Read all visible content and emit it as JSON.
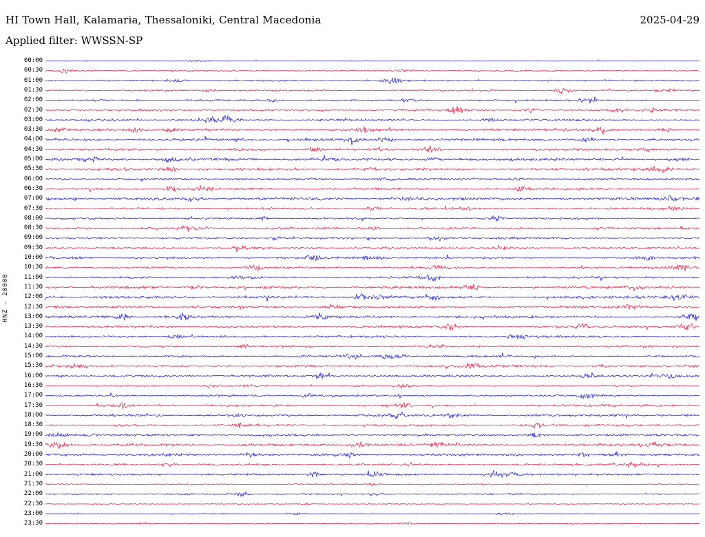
{
  "chart_data": {
    "type": "line",
    "subtype": "seismogram-helicorder",
    "station": "HI Town Hall, Kalamaria, Thessaloniki, Central Macedonia",
    "date": "2025-04-29",
    "filter_label": "Applied filter: WWSSN-SP",
    "channel_scale_label": "HNZ - 20000",
    "row_interval_minutes": 30,
    "legend_position": "none",
    "grid": false,
    "palette": {
      "blue": "#1212cc",
      "red": "#e4103c"
    },
    "rows": [
      {
        "time": "00:00",
        "color": "blue",
        "amp": 0.4,
        "bursts": [
          [
            0.23,
            1.2
          ]
        ]
      },
      {
        "time": "00:30",
        "color": "red",
        "amp": 0.8,
        "bursts": [
          [
            0.03,
            2.2
          ],
          [
            0.55,
            1.4
          ]
        ]
      },
      {
        "time": "01:00",
        "color": "blue",
        "amp": 0.9,
        "bursts": [
          [
            0.53,
            4.0
          ],
          [
            0.2,
            1.5
          ]
        ]
      },
      {
        "time": "01:30",
        "color": "red",
        "amp": 0.9,
        "bursts": [
          [
            0.79,
            4.5
          ],
          [
            0.25,
            2.0
          ],
          [
            0.95,
            2.4
          ]
        ]
      },
      {
        "time": "02:00",
        "color": "blue",
        "amp": 1.0,
        "bursts": [
          [
            0.35,
            2.0
          ],
          [
            0.56,
            2.0
          ],
          [
            0.83,
            2.4
          ]
        ]
      },
      {
        "time": "02:30",
        "color": "red",
        "amp": 1.1,
        "bursts": [
          [
            0.63,
            3.5
          ],
          [
            0.74,
            3.5
          ],
          [
            0.87,
            2.5
          ],
          [
            0.93,
            2.5
          ]
        ]
      },
      {
        "time": "03:00",
        "color": "blue",
        "amp": 1.2,
        "bursts": [
          [
            0.25,
            4.5
          ],
          [
            0.28,
            5.0
          ],
          [
            0.68,
            2.0
          ]
        ]
      },
      {
        "time": "03:30",
        "color": "red",
        "amp": 1.4,
        "bursts": [
          [
            0.02,
            3.0
          ],
          [
            0.14,
            4.0
          ],
          [
            0.19,
            3.0
          ],
          [
            0.49,
            2.5
          ],
          [
            0.85,
            3.5
          ],
          [
            0.95,
            3.0
          ]
        ]
      },
      {
        "time": "04:00",
        "color": "blue",
        "amp": 1.4,
        "bursts": [
          [
            0.3,
            2.0
          ],
          [
            0.47,
            5.0
          ],
          [
            0.52,
            3.0
          ],
          [
            0.83,
            2.5
          ]
        ]
      },
      {
        "time": "04:30",
        "color": "red",
        "amp": 1.3,
        "bursts": [
          [
            0.41,
            4.0
          ],
          [
            0.59,
            3.5
          ],
          [
            0.92,
            2.5
          ]
        ]
      },
      {
        "time": "05:00",
        "color": "blue",
        "amp": 1.6,
        "bursts": [
          [
            0.07,
            2.5
          ],
          [
            0.19,
            2.5
          ],
          [
            0.59,
            2.0
          ],
          [
            0.97,
            2.5
          ]
        ]
      },
      {
        "time": "05:30",
        "color": "red",
        "amp": 1.5,
        "bursts": [
          [
            0.19,
            3.5
          ],
          [
            0.5,
            2.0
          ],
          [
            0.94,
            3.5
          ]
        ]
      },
      {
        "time": "06:00",
        "color": "blue",
        "amp": 1.0,
        "bursts": [
          [
            0.52,
            2.0
          ],
          [
            0.72,
            2.5
          ]
        ]
      },
      {
        "time": "06:30",
        "color": "red",
        "amp": 1.2,
        "bursts": [
          [
            0.19,
            3.5
          ],
          [
            0.24,
            3.0
          ],
          [
            0.73,
            3.0
          ]
        ]
      },
      {
        "time": "07:00",
        "color": "blue",
        "amp": 1.6,
        "bursts": [
          [
            0.23,
            3.0
          ],
          [
            0.55,
            2.0
          ],
          [
            0.96,
            3.5
          ]
        ]
      },
      {
        "time": "07:30",
        "color": "red",
        "amp": 1.2,
        "bursts": [
          [
            0.5,
            2.0
          ],
          [
            0.64,
            2.0
          ],
          [
            0.96,
            2.5
          ]
        ]
      },
      {
        "time": "08:00",
        "color": "blue",
        "amp": 1.1,
        "bursts": [
          [
            0.33,
            2.0
          ],
          [
            0.69,
            3.0
          ]
        ]
      },
      {
        "time": "08:30",
        "color": "red",
        "amp": 1.2,
        "bursts": [
          [
            0.22,
            3.5
          ],
          [
            0.5,
            2.0
          ],
          [
            0.85,
            2.0
          ]
        ]
      },
      {
        "time": "09:00",
        "color": "blue",
        "amp": 1.1,
        "bursts": [
          [
            0.35,
            2.0
          ],
          [
            0.6,
            3.0
          ]
        ]
      },
      {
        "time": "09:30",
        "color": "red",
        "amp": 1.0,
        "bursts": [
          [
            0.3,
            2.0
          ],
          [
            0.7,
            2.0
          ]
        ]
      },
      {
        "time": "10:00",
        "color": "blue",
        "amp": 1.3,
        "bursts": [
          [
            0.41,
            3.5
          ],
          [
            0.49,
            3.0
          ],
          [
            0.51,
            3.0
          ],
          [
            0.92,
            2.5
          ]
        ]
      },
      {
        "time": "10:30",
        "color": "red",
        "amp": 1.2,
        "bursts": [
          [
            0.32,
            3.0
          ],
          [
            0.6,
            2.0
          ],
          [
            0.97,
            3.5
          ]
        ]
      },
      {
        "time": "11:00",
        "color": "blue",
        "amp": 1.2,
        "bursts": [
          [
            0.3,
            2.0
          ],
          [
            0.59,
            3.5
          ]
        ]
      },
      {
        "time": "11:30",
        "color": "red",
        "amp": 1.5,
        "bursts": [
          [
            0.23,
            3.5
          ],
          [
            0.65,
            3.5
          ],
          [
            0.9,
            2.5
          ]
        ]
      },
      {
        "time": "12:00",
        "color": "blue",
        "amp": 1.5,
        "bursts": [
          [
            0.48,
            3.5
          ],
          [
            0.51,
            3.0
          ],
          [
            0.59,
            3.5
          ],
          [
            0.97,
            4.5
          ]
        ]
      },
      {
        "time": "12:30",
        "color": "red",
        "amp": 1.3,
        "bursts": [
          [
            0.02,
            2.5
          ],
          [
            0.44,
            3.0
          ],
          [
            0.9,
            3.5
          ]
        ]
      },
      {
        "time": "13:00",
        "color": "blue",
        "amp": 1.4,
        "bursts": [
          [
            0.12,
            3.5
          ],
          [
            0.21,
            4.0
          ],
          [
            0.42,
            3.5
          ],
          [
            0.99,
            5.0
          ]
        ]
      },
      {
        "time": "13:30",
        "color": "red",
        "amp": 1.3,
        "bursts": [
          [
            0.62,
            3.5
          ],
          [
            0.82,
            3.5
          ],
          [
            0.98,
            4.0
          ]
        ]
      },
      {
        "time": "14:00",
        "color": "blue",
        "amp": 1.2,
        "bursts": [
          [
            0.2,
            3.0
          ],
          [
            0.72,
            3.5
          ]
        ]
      },
      {
        "time": "14:30",
        "color": "red",
        "amp": 1.1,
        "bursts": [
          [
            0.3,
            2.0
          ],
          [
            0.6,
            2.0
          ]
        ]
      },
      {
        "time": "15:00",
        "color": "blue",
        "amp": 1.2,
        "bursts": [
          [
            0.47,
            3.0
          ],
          [
            0.52,
            3.0
          ],
          [
            0.54,
            2.5
          ]
        ]
      },
      {
        "time": "15:30",
        "color": "red",
        "amp": 1.2,
        "bursts": [
          [
            0.05,
            3.0
          ],
          [
            0.65,
            3.5
          ],
          [
            0.85,
            2.0
          ]
        ]
      },
      {
        "time": "16:00",
        "color": "blue",
        "amp": 1.3,
        "bursts": [
          [
            0.42,
            3.5
          ],
          [
            0.83,
            3.0
          ],
          [
            0.95,
            3.5
          ]
        ]
      },
      {
        "time": "16:30",
        "color": "red",
        "amp": 1.0,
        "bursts": [
          [
            0.25,
            2.0
          ],
          [
            0.55,
            2.0
          ]
        ]
      },
      {
        "time": "17:00",
        "color": "blue",
        "amp": 1.1,
        "bursts": [
          [
            0.4,
            2.0
          ],
          [
            0.83,
            3.5
          ]
        ]
      },
      {
        "time": "17:30",
        "color": "red",
        "amp": 1.2,
        "bursts": [
          [
            0.12,
            3.0
          ],
          [
            0.55,
            2.5
          ]
        ]
      },
      {
        "time": "18:00",
        "color": "blue",
        "amp": 1.3,
        "bursts": [
          [
            0.3,
            2.0
          ],
          [
            0.54,
            3.5
          ],
          [
            0.62,
            3.5
          ]
        ]
      },
      {
        "time": "18:30",
        "color": "red",
        "amp": 1.2,
        "bursts": [
          [
            0.3,
            3.0
          ],
          [
            0.75,
            3.5
          ]
        ]
      },
      {
        "time": "19:00",
        "color": "blue",
        "amp": 1.2,
        "bursts": [
          [
            0.02,
            3.5
          ],
          [
            0.07,
            3.0
          ],
          [
            0.75,
            3.0
          ]
        ]
      },
      {
        "time": "19:30",
        "color": "red",
        "amp": 1.5,
        "bursts": [
          [
            0.02,
            4.0
          ],
          [
            0.48,
            3.5
          ],
          [
            0.6,
            3.0
          ],
          [
            0.93,
            2.5
          ]
        ]
      },
      {
        "time": "20:00",
        "color": "blue",
        "amp": 1.3,
        "bursts": [
          [
            0.31,
            3.5
          ],
          [
            0.46,
            3.5
          ],
          [
            0.82,
            3.0
          ],
          [
            0.87,
            3.0
          ]
        ]
      },
      {
        "time": "20:30",
        "color": "red",
        "amp": 1.2,
        "bursts": [
          [
            0.19,
            3.0
          ],
          [
            0.9,
            3.5
          ]
        ]
      },
      {
        "time": "21:00",
        "color": "blue",
        "amp": 1.2,
        "bursts": [
          [
            0.41,
            3.5
          ],
          [
            0.51,
            3.0
          ],
          [
            0.69,
            4.0
          ],
          [
            0.71,
            3.5
          ]
        ]
      },
      {
        "time": "21:30",
        "color": "red",
        "amp": 0.7,
        "bursts": [
          [
            0.5,
            1.4
          ]
        ]
      },
      {
        "time": "22:00",
        "color": "blue",
        "amp": 0.8,
        "bursts": [
          [
            0.3,
            3.0
          ],
          [
            0.5,
            2.0
          ]
        ]
      },
      {
        "time": "22:30",
        "color": "red",
        "amp": 0.5,
        "bursts": [
          [
            0.4,
            1.0
          ]
        ]
      },
      {
        "time": "23:00",
        "color": "blue",
        "amp": 0.5,
        "bursts": [
          [
            0.38,
            1.4
          ],
          [
            0.7,
            1.4
          ]
        ]
      },
      {
        "time": "23:30",
        "color": "red",
        "amp": 0.6,
        "bursts": [
          [
            0.15,
            1.4
          ],
          [
            0.55,
            1.4
          ]
        ]
      }
    ]
  }
}
